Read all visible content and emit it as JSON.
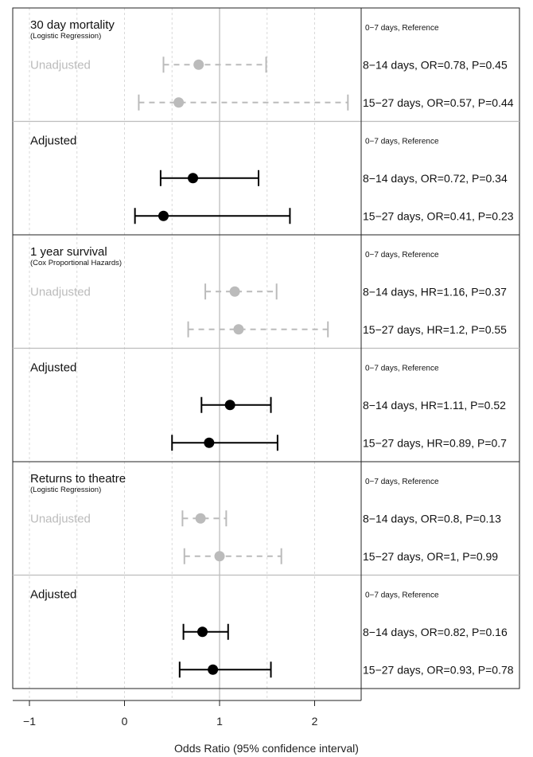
{
  "chart_data": {
    "type": "forest",
    "xlabel": "Odds Ratio (95% confidence interval)",
    "x_ticks": [
      -1,
      0,
      1,
      2
    ],
    "x_tick_labels": [
      "−1",
      "0",
      "1",
      "2"
    ],
    "xlim": [
      -1.5,
      2.5
    ],
    "reference_line": 1,
    "colors": {
      "unadjusted": "#bbbbbb",
      "adjusted": "#000000",
      "axis": "#222222",
      "grid": "#d9d9d9",
      "reference": "#bdbdbd"
    },
    "panels": [
      {
        "title": "30 day mortality",
        "subtitle": "(Logistic Regression)",
        "blocks": [
          {
            "label": "Unadjusted",
            "style": "unadjusted",
            "reference_text": "0−7 days, Reference",
            "estimates": [
              {
                "est": 0.78,
                "lo": 0.41,
                "hi": 1.49,
                "text": "8−14 days, OR=0.78, P=0.45"
              },
              {
                "est": 0.57,
                "lo": 0.15,
                "hi": 2.35,
                "text": "15−27 days, OR=0.57, P=0.44"
              }
            ]
          },
          {
            "label": "Adjusted",
            "style": "adjusted",
            "reference_text": "0−7 days, Reference",
            "estimates": [
              {
                "est": 0.72,
                "lo": 0.38,
                "hi": 1.41,
                "text": "8−14 days, OR=0.72, P=0.34"
              },
              {
                "est": 0.41,
                "lo": 0.11,
                "hi": 1.74,
                "text": "15−27 days, OR=0.41, P=0.23"
              }
            ]
          }
        ]
      },
      {
        "title": "1 year survival",
        "subtitle": "(Cox Proportional Hazards)",
        "blocks": [
          {
            "label": "Unadjusted",
            "style": "unadjusted",
            "reference_text": "0−7 days, Reference",
            "estimates": [
              {
                "est": 1.16,
                "lo": 0.85,
                "hi": 1.6,
                "text": "8−14 days, HR=1.16, P=0.37"
              },
              {
                "est": 1.2,
                "lo": 0.67,
                "hi": 2.14,
                "text": "15−27 days, HR=1.2, P=0.55"
              }
            ]
          },
          {
            "label": "Adjusted",
            "style": "adjusted",
            "reference_text": "0−7 days, Reference",
            "estimates": [
              {
                "est": 1.11,
                "lo": 0.81,
                "hi": 1.54,
                "text": "8−14 days, HR=1.11, P=0.52"
              },
              {
                "est": 0.89,
                "lo": 0.5,
                "hi": 1.61,
                "text": "15−27 days, HR=0.89, P=0.7"
              }
            ]
          }
        ]
      },
      {
        "title": "Returns to theatre",
        "subtitle": "(Logistic Regression)",
        "blocks": [
          {
            "label": "Unadjusted",
            "style": "unadjusted",
            "reference_text": "0−7 days, Reference",
            "estimates": [
              {
                "est": 0.8,
                "lo": 0.61,
                "hi": 1.07,
                "text": "8−14 days, OR=0.8, P=0.13"
              },
              {
                "est": 1.0,
                "lo": 0.63,
                "hi": 1.65,
                "text": "15−27 days, OR=1, P=0.99"
              }
            ]
          },
          {
            "label": "Adjusted",
            "style": "adjusted",
            "reference_text": "0−7 days, Reference",
            "estimates": [
              {
                "est": 0.82,
                "lo": 0.62,
                "hi": 1.09,
                "text": "8−14 days, OR=0.82, P=0.16"
              },
              {
                "est": 0.93,
                "lo": 0.58,
                "hi": 1.54,
                "text": "15−27 days, OR=0.93, P=0.78"
              }
            ]
          }
        ]
      }
    ]
  }
}
